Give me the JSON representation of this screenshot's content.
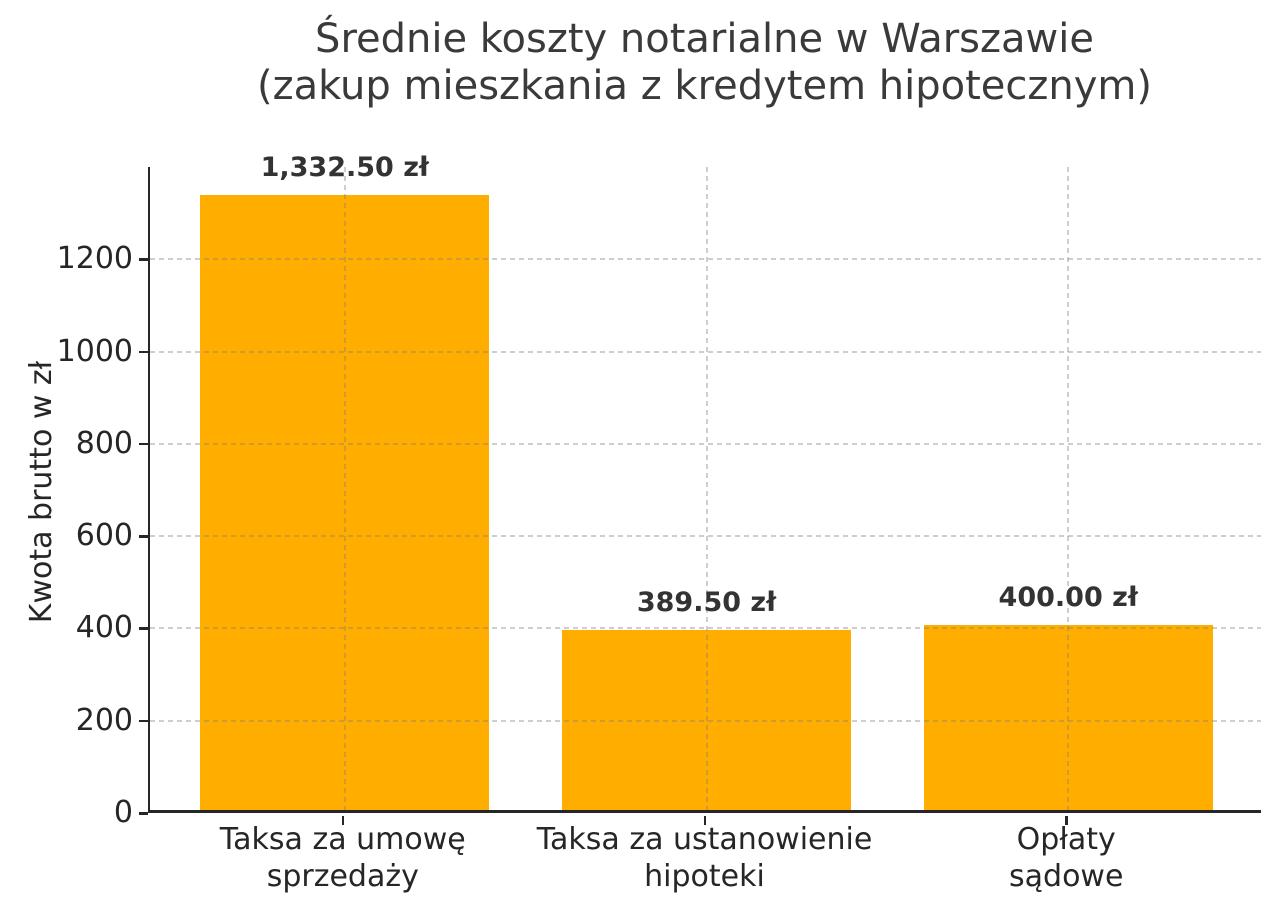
{
  "figure": {
    "background": "#ffffff",
    "title_lines": [
      "Średnie koszty notarialne w Warszawie",
      "(zakup mieszkania z kredytem hipotecznym)"
    ]
  },
  "chart_data": {
    "type": "bar",
    "title": "Średnie koszty notarialne w Warszawie (zakup mieszkania z kredytem hipotecznym)",
    "categories": [
      "Taksa za umowę sprzedaży",
      "Taksa za ustanowienie hipoteki",
      "Opłaty sądowe"
    ],
    "category_lines": [
      [
        "Taksa za umowę",
        "sprzedaży"
      ],
      [
        "Taksa za ustanowienie",
        "hipoteki"
      ],
      [
        "Opłaty",
        "sądowe"
      ]
    ],
    "values": [
      1332.5,
      389.5,
      400.0
    ],
    "value_labels": [
      "1,332.50 zł",
      "389.50 zł",
      "400.00 zł"
    ],
    "xlabel": "",
    "ylabel": "Kwota brutto w zł",
    "ylim": [
      0,
      1400
    ],
    "yticks": [
      0,
      200,
      400,
      600,
      800,
      1000,
      1200
    ],
    "grid": true,
    "grid_style": "dashed",
    "legend": null,
    "bar_color": "#ffae00",
    "axis_color": "#262626",
    "title_color": "#3a3a3a",
    "value_label_color": "#333333"
  }
}
